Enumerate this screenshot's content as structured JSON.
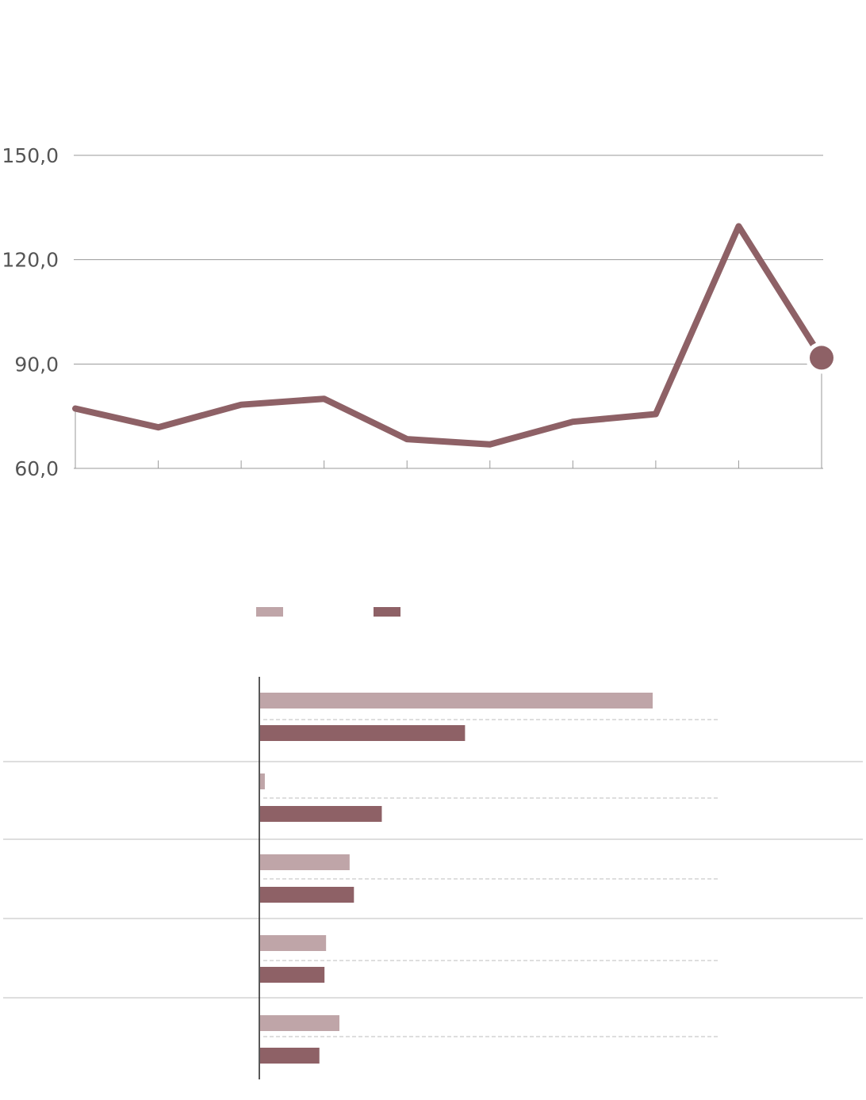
{
  "colors": {
    "primary": "#8e6166",
    "light": "#bfa5a8",
    "grid": "#9a9a9a",
    "tick_text": "#555555",
    "divider": "#bdbdbd"
  },
  "chart_data": [
    {
      "type": "line",
      "title": "",
      "xlabel": "",
      "ylabel": "",
      "x": [
        1,
        2,
        3,
        4,
        5,
        6,
        7,
        8,
        9,
        10
      ],
      "y_tick_labels": [
        "60,0",
        "90,0",
        "120,0",
        "150,0"
      ],
      "y_ticks": [
        60,
        90,
        120,
        150
      ],
      "ylim": [
        60,
        150
      ],
      "series": [
        {
          "values": [
            77.2,
            71.8,
            78.3,
            80.0,
            68.4,
            66.9,
            73.4,
            75.6,
            129.6,
            91.8
          ]
        }
      ],
      "highlight_last_point": true,
      "grid": true
    },
    {
      "type": "bar",
      "orientation": "horizontal",
      "title": "",
      "categories": [
        "",
        "",
        "",
        "",
        ""
      ],
      "series": [
        {
          "color_role": "light",
          "values": [
            100,
            1.2,
            22.8,
            16.8,
            20.2
          ]
        },
        {
          "color_role": "primary",
          "values": [
            52.2,
            31.0,
            23.9,
            16.4,
            15.1
          ]
        }
      ],
      "legend": "top",
      "grid": false
    }
  ]
}
